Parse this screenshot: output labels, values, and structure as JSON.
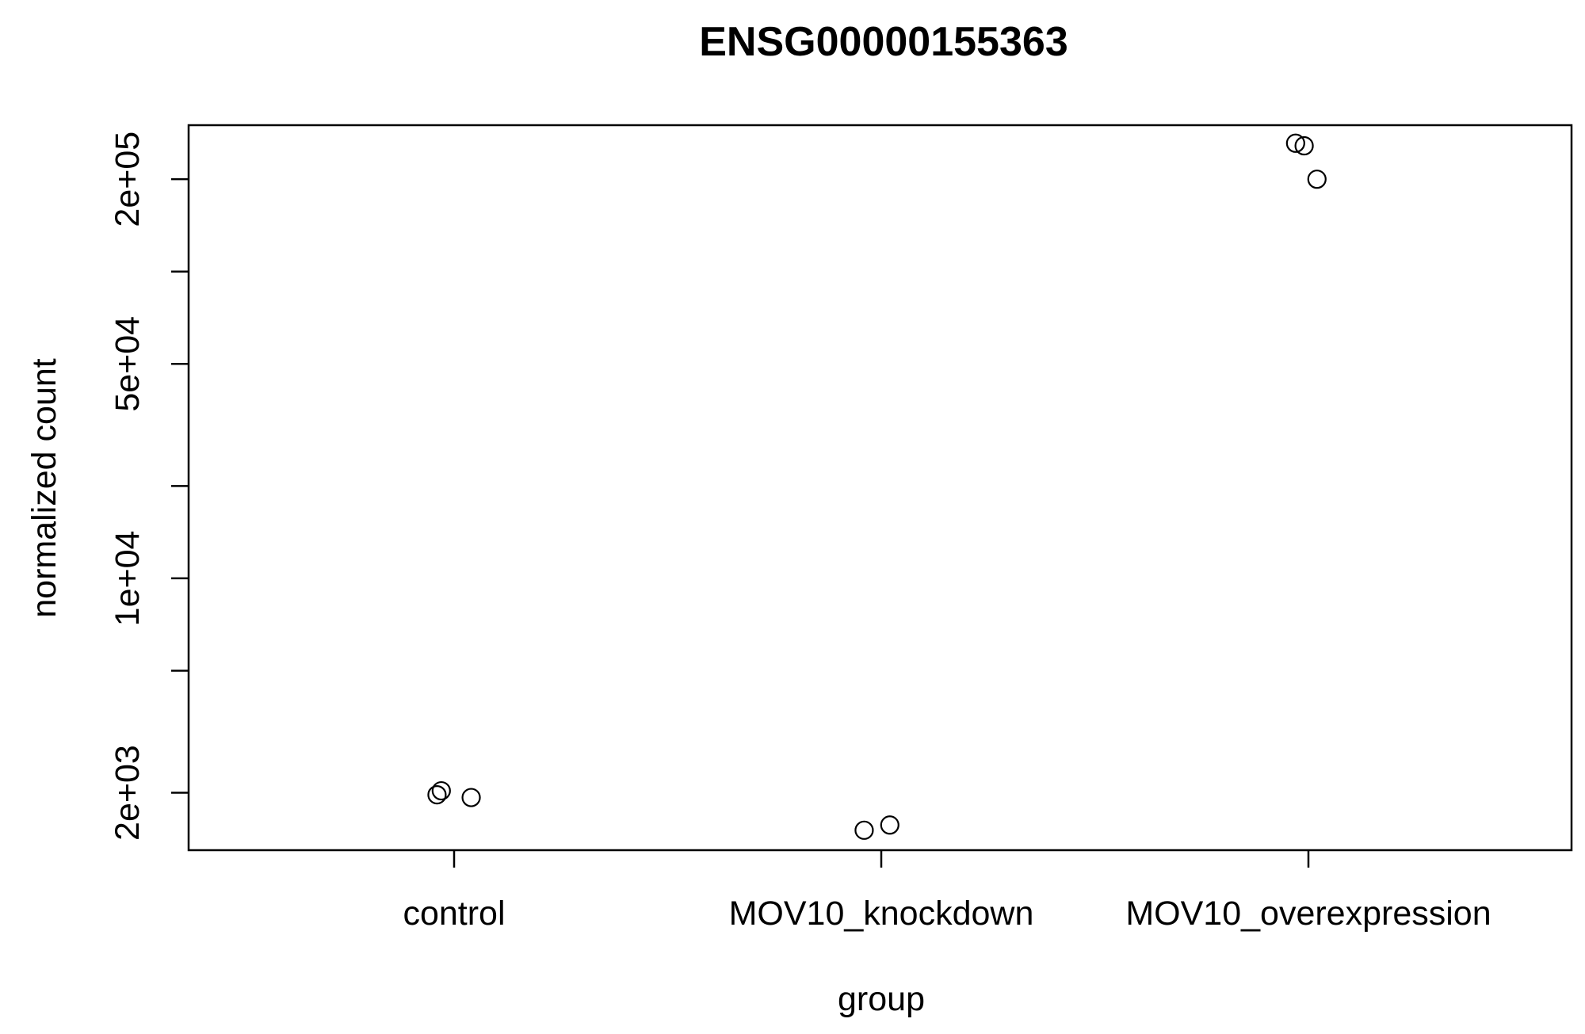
{
  "chart_data": {
    "type": "scatter",
    "title": "ENSG00000155363",
    "xlabel": "group",
    "ylabel": "normalized count",
    "y_scale": "log",
    "ylim": [
      1300,
      300000
    ],
    "grid": false,
    "legend": "none",
    "categories": [
      "control",
      "MOV10_knockdown",
      "MOV10_overexpression"
    ],
    "y_ticks": [
      {
        "value": 2000,
        "label": "2e+03"
      },
      {
        "value": 5000,
        "label": ""
      },
      {
        "value": 10000,
        "label": "1e+04"
      },
      {
        "value": 20000,
        "label": ""
      },
      {
        "value": 50000,
        "label": "5e+04"
      },
      {
        "value": 100000,
        "label": ""
      },
      {
        "value": 200000,
        "label": "2e+05"
      }
    ],
    "points": [
      {
        "category": "control",
        "jitter": -0.04,
        "y": 1970
      },
      {
        "category": "control",
        "jitter": -0.03,
        "y": 2030
      },
      {
        "category": "control",
        "jitter": 0.04,
        "y": 1930
      },
      {
        "category": "MOV10_knockdown",
        "jitter": -0.04,
        "y": 1510
      },
      {
        "category": "MOV10_knockdown",
        "jitter": 0.02,
        "y": 1570
      },
      {
        "category": "MOV10_overexpression",
        "jitter": -0.03,
        "y": 262000
      },
      {
        "category": "MOV10_overexpression",
        "jitter": -0.01,
        "y": 257000
      },
      {
        "category": "MOV10_overexpression",
        "jitter": 0.02,
        "y": 200000
      }
    ]
  }
}
